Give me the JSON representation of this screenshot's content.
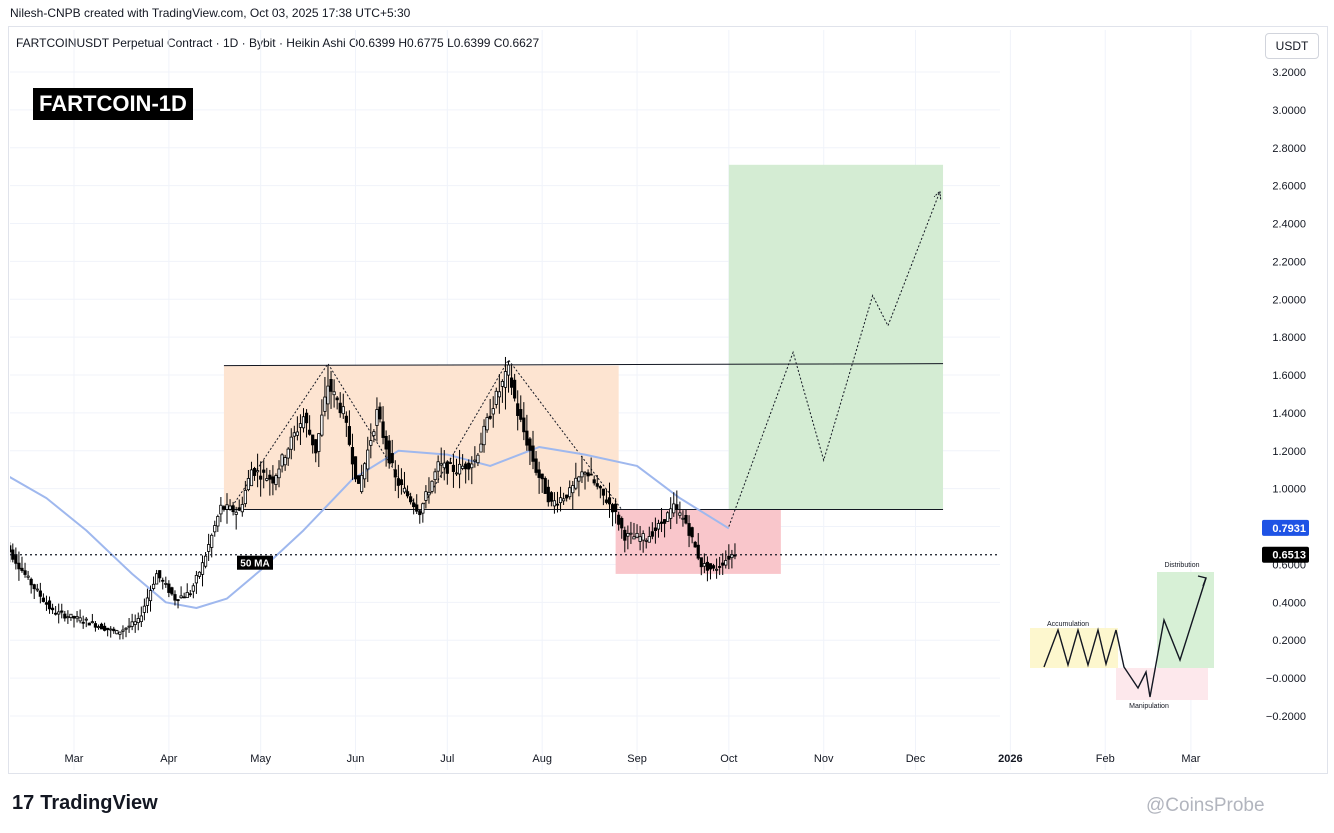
{
  "header": {
    "credit": "Nilesh-CNPB created with TradingView.com, Oct 03, 2025 17:38 UTC+5:30",
    "symbol_line": "FARTCOINUSDT Perpetual Contract · 1D · Bybit · Heikin Ashi  O0.6399  H0.6775  L0.6399  C0.6627",
    "badge": "FARTCOIN-1D",
    "currency_button": "USDT"
  },
  "footer": {
    "logo_mark": "17",
    "logo_text": "TradingView",
    "watermark": "@CoinsProbe"
  },
  "colors": {
    "candle": "#000000",
    "ma": "#9fb8ee",
    "consolidation_box": "#fde3cf",
    "target_box": "#d2ebd1",
    "risk_box": "#f9c3c8",
    "ma_tag": "#1e53e5",
    "price_tag": "#000000"
  },
  "chart_data": {
    "type": "candlestick",
    "style": "Heikin Ashi",
    "interval": "1D",
    "exchange": "Bybit",
    "ohlc_last": {
      "open": 0.6399,
      "high": 0.6775,
      "low": 0.6399,
      "close": 0.6627
    },
    "y_axis": {
      "ticks": [
        "3.2000",
        "3.0000",
        "2.8000",
        "2.6000",
        "2.4000",
        "2.2000",
        "2.0000",
        "1.8000",
        "1.6000",
        "1.4000",
        "1.2000",
        "1.0000",
        "0.8000",
        "0.6000",
        "0.4000",
        "0.2000",
        "−0.0000",
        "−0.2000"
      ],
      "ylim": [
        -0.26,
        3.26
      ],
      "grid": true
    },
    "x_axis": {
      "ticks": [
        {
          "label": "Mar",
          "date": "2025-03-01"
        },
        {
          "label": "Apr",
          "date": "2025-04-01"
        },
        {
          "label": "May",
          "date": "2025-05-01"
        },
        {
          "label": "Jun",
          "date": "2025-06-01"
        },
        {
          "label": "Jul",
          "date": "2025-07-01"
        },
        {
          "label": "Aug",
          "date": "2025-08-01"
        },
        {
          "label": "Sep",
          "date": "2025-09-01"
        },
        {
          "label": "Oct",
          "date": "2025-10-01"
        },
        {
          "label": "Nov",
          "date": "2025-11-01"
        },
        {
          "label": "Dec",
          "date": "2025-12-01"
        },
        {
          "label": "2026",
          "date": "2026-01-01",
          "bold": true
        },
        {
          "label": "Feb",
          "date": "2026-02-01"
        },
        {
          "label": "Mar",
          "date": "2026-03-01"
        }
      ],
      "grid": true
    },
    "price_anchors": [
      [
        "2025-02-06",
        0.72
      ],
      [
        "2025-02-14",
        0.52
      ],
      [
        "2025-02-22",
        0.35
      ],
      [
        "2025-03-05",
        0.3
      ],
      [
        "2025-03-15",
        0.24
      ],
      [
        "2025-03-22",
        0.3
      ],
      [
        "2025-03-28",
        0.55
      ],
      [
        "2025-04-03",
        0.42
      ],
      [
        "2025-04-08",
        0.45
      ],
      [
        "2025-04-12",
        0.6
      ],
      [
        "2025-04-18",
        0.9
      ],
      [
        "2025-04-24",
        0.88
      ],
      [
        "2025-04-28",
        1.1
      ],
      [
        "2025-05-05",
        1.05
      ],
      [
        "2025-05-10",
        1.22
      ],
      [
        "2025-05-15",
        1.38
      ],
      [
        "2025-05-19",
        1.2
      ],
      [
        "2025-05-23",
        1.55
      ],
      [
        "2025-05-28",
        1.4
      ],
      [
        "2025-06-02",
        1.0
      ],
      [
        "2025-06-08",
        1.4
      ],
      [
        "2025-06-14",
        1.05
      ],
      [
        "2025-06-22",
        0.88
      ],
      [
        "2025-06-28",
        1.12
      ],
      [
        "2025-07-04",
        1.1
      ],
      [
        "2025-07-10",
        1.15
      ],
      [
        "2025-07-16",
        1.45
      ],
      [
        "2025-07-21",
        1.62
      ],
      [
        "2025-07-24",
        1.4
      ],
      [
        "2025-07-30",
        1.1
      ],
      [
        "2025-08-04",
        0.92
      ],
      [
        "2025-08-10",
        0.98
      ],
      [
        "2025-08-15",
        1.1
      ],
      [
        "2025-08-20",
        0.98
      ],
      [
        "2025-08-24",
        0.9
      ],
      [
        "2025-08-28",
        0.75
      ],
      [
        "2025-09-04",
        0.74
      ],
      [
        "2025-09-08",
        0.8
      ],
      [
        "2025-09-13",
        0.9
      ],
      [
        "2025-09-17",
        0.82
      ],
      [
        "2025-09-22",
        0.6
      ],
      [
        "2025-09-26",
        0.57
      ],
      [
        "2025-10-01",
        0.64
      ],
      [
        "2025-10-03",
        0.66
      ]
    ],
    "moving_average": {
      "label": "50 MA",
      "last_value": "0.7931",
      "points": [
        [
          "2025-02-06",
          1.08
        ],
        [
          "2025-02-20",
          0.95
        ],
        [
          "2025-03-05",
          0.78
        ],
        [
          "2025-03-20",
          0.55
        ],
        [
          "2025-03-31",
          0.4
        ],
        [
          "2025-04-10",
          0.37
        ],
        [
          "2025-04-20",
          0.42
        ],
        [
          "2025-05-01",
          0.57
        ],
        [
          "2025-05-15",
          0.78
        ],
        [
          "2025-05-31",
          1.05
        ],
        [
          "2025-06-15",
          1.2
        ],
        [
          "2025-07-01",
          1.18
        ],
        [
          "2025-07-15",
          1.12
        ],
        [
          "2025-07-31",
          1.22
        ],
        [
          "2025-08-15",
          1.18
        ],
        [
          "2025-09-01",
          1.12
        ],
        [
          "2025-09-15",
          0.95
        ],
        [
          "2025-10-01",
          0.79
        ]
      ]
    },
    "last_price": "0.6513",
    "zones": [
      {
        "name": "consolidation",
        "x": [
          "2025-04-19",
          "2025-08-26"
        ],
        "y": [
          0.89,
          1.65
        ]
      },
      {
        "name": "target",
        "x": [
          "2025-10-01",
          "2025-12-10"
        ],
        "y": [
          0.89,
          2.71
        ]
      },
      {
        "name": "risk",
        "x": [
          "2025-08-25",
          "2025-10-18"
        ],
        "y": [
          0.55,
          0.89
        ]
      }
    ],
    "levels": [
      {
        "name": "resistance",
        "x": [
          "2025-04-19",
          "2025-12-10"
        ],
        "y": [
          1.65,
          1.66
        ]
      },
      {
        "name": "support",
        "x": [
          "2025-04-19",
          "2025-12-10"
        ],
        "y": [
          0.89,
          0.89
        ]
      }
    ],
    "pattern_lines": [
      {
        "points": [
          [
            "2025-04-21",
            0.89
          ],
          [
            "2025-05-23",
            1.66
          ],
          [
            "2025-06-22",
            0.88
          ]
        ]
      },
      {
        "points": [
          [
            "2025-06-22",
            0.88
          ],
          [
            "2025-07-21",
            1.68
          ],
          [
            "2025-08-27",
            0.89
          ]
        ]
      }
    ],
    "projection": {
      "points": [
        [
          "2025-10-01",
          0.8
        ],
        [
          "2025-10-22",
          1.72
        ],
        [
          "2025-11-01",
          1.15
        ],
        [
          "2025-11-17",
          2.02
        ],
        [
          "2025-11-22",
          1.86
        ],
        [
          "2025-12-09",
          2.57
        ]
      ]
    },
    "wyckoff_inset": {
      "labels": [
        "Accumulation",
        "Manipulation",
        "Distribution"
      ]
    }
  }
}
